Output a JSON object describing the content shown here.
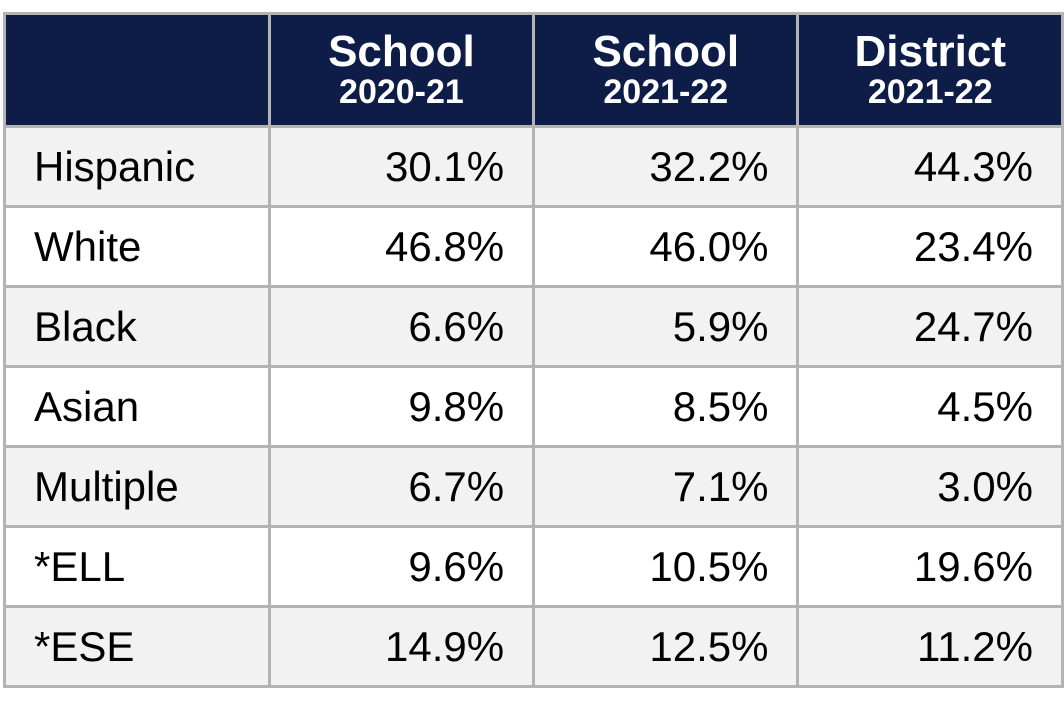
{
  "chart_data": {
    "type": "table",
    "columns": [
      {
        "line1": "",
        "line2": ""
      },
      {
        "line1": "School",
        "line2": "2020-21"
      },
      {
        "line1": "School",
        "line2": "2021-22"
      },
      {
        "line1": "District",
        "line2": "2021-22"
      }
    ],
    "rows": [
      {
        "label": "Hispanic",
        "values": [
          "30.1%",
          "32.2%",
          "44.3%"
        ]
      },
      {
        "label": "White",
        "values": [
          "46.8%",
          "46.0%",
          "23.4%"
        ]
      },
      {
        "label": "Black",
        "values": [
          "6.6%",
          "5.9%",
          "24.7%"
        ]
      },
      {
        "label": "Asian",
        "values": [
          "9.8%",
          "8.5%",
          "4.5%"
        ]
      },
      {
        "label": "Multiple",
        "values": [
          "6.7%",
          "7.1%",
          "3.0%"
        ]
      },
      {
        "label": "*ELL",
        "values": [
          "9.6%",
          "10.5%",
          "19.6%"
        ]
      },
      {
        "label": "*ESE",
        "values": [
          "14.9%",
          "12.5%",
          "11.2%"
        ]
      }
    ],
    "colors": {
      "header_bg": "#0e1c48",
      "header_text": "#ffffff",
      "stripe": "#f2f2f2",
      "border": "#b3b3b3"
    }
  }
}
